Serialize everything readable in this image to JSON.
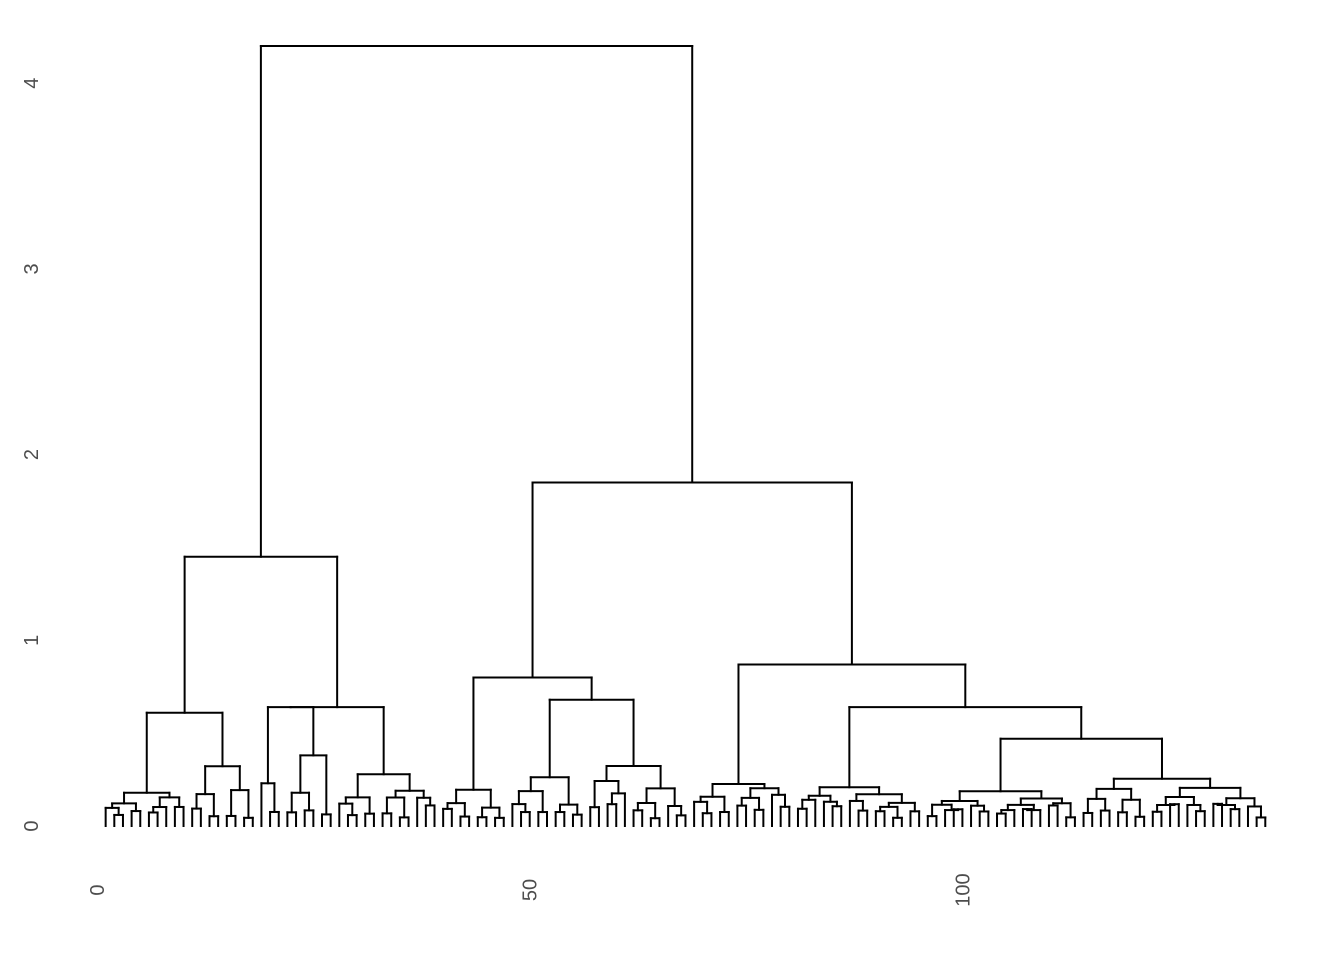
{
  "chart_data": {
    "type": "dendrogram",
    "title": "",
    "xlabel": "",
    "ylabel": "",
    "xlim": [
      0,
      136
    ],
    "ylim": [
      0,
      4.2
    ],
    "grid": false,
    "legend": "none",
    "x_ticks": [
      {
        "value": 0,
        "label": "0"
      },
      {
        "value": 50,
        "label": "50"
      },
      {
        "value": 100,
        "label": "100"
      }
    ],
    "y_ticks": [
      {
        "value": 0,
        "label": "0"
      },
      {
        "value": 1,
        "label": "1"
      },
      {
        "value": 2,
        "label": "2"
      },
      {
        "value": 3,
        "label": "3"
      },
      {
        "value": 4,
        "label": "4"
      }
    ],
    "line_color": "#000000",
    "text_color": "#4d4d4d",
    "leaves": [
      {
        "x": 1,
        "h": 0.0
      },
      {
        "x": 2,
        "h": 0.0
      },
      {
        "x": 3,
        "h": 0.0
      },
      {
        "x": 4,
        "h": 0.0
      },
      {
        "x": 5,
        "h": 0.0
      },
      {
        "x": 6,
        "h": 0.0
      },
      {
        "x": 7,
        "h": 0.0
      },
      {
        "x": 8,
        "h": 0.0
      },
      {
        "x": 9,
        "h": 0.0
      },
      {
        "x": 10,
        "h": 0.0
      },
      {
        "x": 11,
        "h": 0.0
      },
      {
        "x": 12,
        "h": 0.0
      },
      {
        "x": 13,
        "h": 0.0
      },
      {
        "x": 14,
        "h": 0.0
      },
      {
        "x": 15,
        "h": 0.0
      },
      {
        "x": 16,
        "h": 0.0
      },
      {
        "x": 17,
        "h": 0.0
      },
      {
        "x": 18,
        "h": 0.0
      },
      {
        "x": 19,
        "h": 0.0
      },
      {
        "x": 20,
        "h": 0.0
      },
      {
        "x": 21,
        "h": 0.0
      },
      {
        "x": 22,
        "h": 0.0
      },
      {
        "x": 23,
        "h": 0.0
      },
      {
        "x": 24,
        "h": 0.0
      },
      {
        "x": 25,
        "h": 0.0
      },
      {
        "x": 26,
        "h": 0.0
      },
      {
        "x": 27,
        "h": 0.0
      },
      {
        "x": 28,
        "h": 0.0
      },
      {
        "x": 29,
        "h": 0.0
      },
      {
        "x": 30,
        "h": 0.0
      },
      {
        "x": 31,
        "h": 0.0
      },
      {
        "x": 32,
        "h": 0.0
      },
      {
        "x": 33,
        "h": 0.0
      },
      {
        "x": 34,
        "h": 0.0
      },
      {
        "x": 35,
        "h": 0.0
      },
      {
        "x": 36,
        "h": 0.0
      },
      {
        "x": 37,
        "h": 0.0
      },
      {
        "x": 38,
        "h": 0.0
      },
      {
        "x": 39,
        "h": 0.0
      },
      {
        "x": 40,
        "h": 0.0
      },
      {
        "x": 41,
        "h": 0.0
      },
      {
        "x": 42,
        "h": 0.0
      },
      {
        "x": 43,
        "h": 0.0
      },
      {
        "x": 44,
        "h": 0.0
      },
      {
        "x": 45,
        "h": 0.0
      },
      {
        "x": 46,
        "h": 0.0
      },
      {
        "x": 47,
        "h": 0.0
      },
      {
        "x": 48,
        "h": 0.0
      },
      {
        "x": 49,
        "h": 0.0
      },
      {
        "x": 50,
        "h": 0.0
      },
      {
        "x": 51,
        "h": 0.0
      },
      {
        "x": 52,
        "h": 0.0
      },
      {
        "x": 53,
        "h": 0.0
      },
      {
        "x": 54,
        "h": 0.0
      },
      {
        "x": 55,
        "h": 0.0
      },
      {
        "x": 56,
        "h": 0.0
      },
      {
        "x": 57,
        "h": 0.0
      },
      {
        "x": 58,
        "h": 0.0
      },
      {
        "x": 59,
        "h": 0.0
      },
      {
        "x": 60,
        "h": 0.0
      },
      {
        "x": 61,
        "h": 0.0
      },
      {
        "x": 62,
        "h": 0.0
      },
      {
        "x": 63,
        "h": 0.0
      },
      {
        "x": 64,
        "h": 0.0
      },
      {
        "x": 65,
        "h": 0.0
      },
      {
        "x": 66,
        "h": 0.0
      },
      {
        "x": 67,
        "h": 0.0
      },
      {
        "x": 68,
        "h": 0.0
      },
      {
        "x": 69,
        "h": 0.0
      },
      {
        "x": 70,
        "h": 0.0
      },
      {
        "x": 71,
        "h": 0.0
      },
      {
        "x": 72,
        "h": 0.0
      },
      {
        "x": 73,
        "h": 0.0
      },
      {
        "x": 74,
        "h": 0.0
      },
      {
        "x": 75,
        "h": 0.0
      },
      {
        "x": 76,
        "h": 0.0
      },
      {
        "x": 77,
        "h": 0.0
      },
      {
        "x": 78,
        "h": 0.0
      },
      {
        "x": 79,
        "h": 0.0
      },
      {
        "x": 80,
        "h": 0.0
      },
      {
        "x": 81,
        "h": 0.0
      },
      {
        "x": 82,
        "h": 0.0
      },
      {
        "x": 83,
        "h": 0.0
      },
      {
        "x": 84,
        "h": 0.0
      },
      {
        "x": 85,
        "h": 0.0
      },
      {
        "x": 86,
        "h": 0.0
      },
      {
        "x": 87,
        "h": 0.0
      },
      {
        "x": 88,
        "h": 0.0
      },
      {
        "x": 89,
        "h": 0.0
      },
      {
        "x": 90,
        "h": 0.0
      },
      {
        "x": 91,
        "h": 0.0
      },
      {
        "x": 92,
        "h": 0.0
      },
      {
        "x": 93,
        "h": 0.0
      },
      {
        "x": 94,
        "h": 0.0
      },
      {
        "x": 95,
        "h": 0.0
      },
      {
        "x": 96,
        "h": 0.0
      },
      {
        "x": 97,
        "h": 0.0
      },
      {
        "x": 98,
        "h": 0.0
      },
      {
        "x": 99,
        "h": 0.0
      },
      {
        "x": 100,
        "h": 0.0
      },
      {
        "x": 101,
        "h": 0.0
      },
      {
        "x": 102,
        "h": 0.0
      },
      {
        "x": 103,
        "h": 0.0
      },
      {
        "x": 104,
        "h": 0.0
      },
      {
        "x": 105,
        "h": 0.0
      },
      {
        "x": 106,
        "h": 0.0
      },
      {
        "x": 107,
        "h": 0.0
      },
      {
        "x": 108,
        "h": 0.0
      },
      {
        "x": 109,
        "h": 0.0
      },
      {
        "x": 110,
        "h": 0.0
      },
      {
        "x": 111,
        "h": 0.0
      },
      {
        "x": 112,
        "h": 0.0
      },
      {
        "x": 113,
        "h": 0.0
      },
      {
        "x": 114,
        "h": 0.0
      },
      {
        "x": 115,
        "h": 0.0
      },
      {
        "x": 116,
        "h": 0.0
      },
      {
        "x": 117,
        "h": 0.0
      },
      {
        "x": 118,
        "h": 0.0
      },
      {
        "x": 119,
        "h": 0.0
      },
      {
        "x": 120,
        "h": 0.0
      },
      {
        "x": 121,
        "h": 0.0
      },
      {
        "x": 122,
        "h": 0.0
      },
      {
        "x": 123,
        "h": 0.0
      },
      {
        "x": 124,
        "h": 0.0
      },
      {
        "x": 125,
        "h": 0.0
      },
      {
        "x": 126,
        "h": 0.0
      },
      {
        "x": 127,
        "h": 0.0
      },
      {
        "x": 128,
        "h": 0.0
      },
      {
        "x": 129,
        "h": 0.0
      },
      {
        "x": 130,
        "h": 0.0
      },
      {
        "x": 131,
        "h": 0.0
      },
      {
        "x": 132,
        "h": 0.0
      },
      {
        "x": 133,
        "h": 0.0
      },
      {
        "x": 134,
        "h": 0.0
      },
      {
        "x": 135,
        "h": 0.0
      }
    ],
    "major_merges": [
      {
        "name": "root",
        "height": 4.2,
        "left_x": 24.0,
        "right_x": 86.7
      },
      {
        "name": "left-cluster",
        "height": 1.45,
        "left_x": 13.3,
        "right_x": 34.6
      },
      {
        "name": "right-cluster",
        "height": 1.85,
        "left_x": 66.5,
        "right_x": 106.9
      },
      {
        "name": "left-left",
        "height": 0.61,
        "left_x": 5.1,
        "right_x": 21.4
      },
      {
        "name": "left-right",
        "height": 0.64,
        "left_x": 30.1,
        "right_x": 39.1
      },
      {
        "name": "right-left",
        "height": 0.8,
        "left_x": 60.0,
        "right_x": 73.0
      },
      {
        "name": "right-right",
        "height": 0.87,
        "left_x": 98.6,
        "right_x": 115.2
      },
      {
        "name": "right-left-right",
        "height": 0.68,
        "left_x": 66.7,
        "right_x": 79.3
      },
      {
        "name": "right-right-right",
        "height": 0.64,
        "left_x": 107.7,
        "right_x": 122.3
      },
      {
        "name": "right-right-right-right",
        "height": 0.47,
        "left_x": 118.8,
        "right_x": 126.5
      }
    ]
  }
}
